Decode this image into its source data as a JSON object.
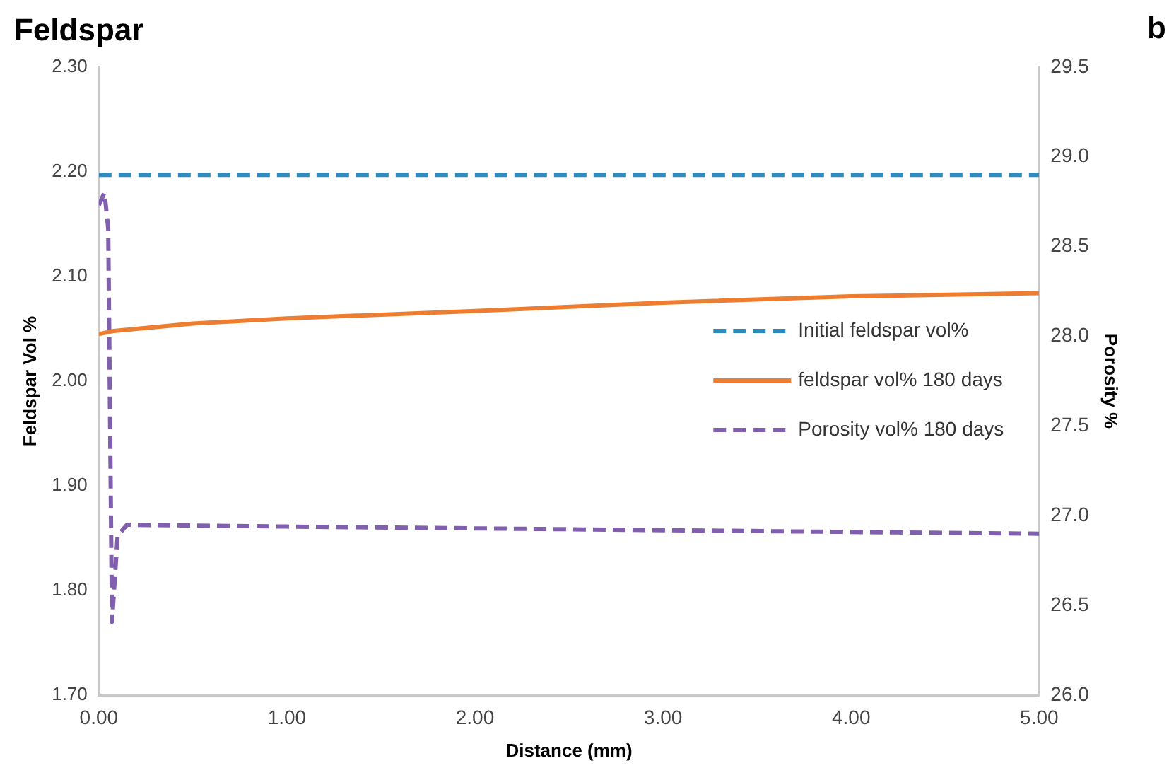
{
  "chart_data": {
    "type": "line",
    "title": "Feldspar",
    "xlabel": "Distance (mm)",
    "ylabel": "Feldspar Vol %",
    "y2label": "Porosity %",
    "annotations": [
      "b"
    ],
    "series": [
      {
        "name": "Initial feldspar vol%",
        "color": "#2e8bc0",
        "line_style": "dashed",
        "x": [
          0,
          5
        ],
        "values": [
          2.197,
          2.197
        ]
      },
      {
        "name": "feldspar vol% 180 days",
        "color": "#ed7d31",
        "line_style": "solid",
        "x": [
          0,
          0.08,
          0.5,
          1,
          2,
          3,
          4,
          5
        ],
        "values": [
          2.045,
          2.048,
          2.055,
          2.06,
          2.067,
          2.075,
          2.081,
          2.084
        ]
      },
      {
        "name": "Porosity vol% 180 days",
        "color": "#7f5fae",
        "line_style": "dashed",
        "axis": "y2",
        "x": [
          0,
          0.03,
          0.05,
          0.07,
          0.1,
          0.15,
          1,
          2,
          3,
          4,
          5
        ],
        "values": [
          28.73,
          28.8,
          28.6,
          26.41,
          26.89,
          26.95,
          26.94,
          26.93,
          26.92,
          26.91,
          26.9
        ]
      }
    ],
    "xlim": [
      0,
      5
    ],
    "xticks": [
      {
        "value": 0,
        "label": "0.00"
      },
      {
        "value": 1,
        "label": "1.00"
      },
      {
        "value": 2,
        "label": "2.00"
      },
      {
        "value": 3,
        "label": "3.00"
      },
      {
        "value": 4,
        "label": "4.00"
      },
      {
        "value": 5,
        "label": "5.00"
      }
    ],
    "ylim": [
      1.7,
      2.3
    ],
    "yticks": [
      {
        "value": 1.7,
        "label": "1.70"
      },
      {
        "value": 1.8,
        "label": "1.80"
      },
      {
        "value": 1.9,
        "label": "1.90"
      },
      {
        "value": 2.0,
        "label": "2.00"
      },
      {
        "value": 2.1,
        "label": "2.10"
      },
      {
        "value": 2.2,
        "label": "2.20"
      },
      {
        "value": 2.3,
        "label": "2.30"
      }
    ],
    "y2lim": [
      26,
      29.5
    ],
    "y2ticks": [
      {
        "value": 26,
        "label": "26.0"
      },
      26.5,
      {
        "value": 27,
        "label": "27.0"
      },
      27.5,
      {
        "value": 28,
        "label": "28.0"
      },
      28.5,
      {
        "value": 29,
        "label": "29.0"
      },
      29.5
    ],
    "grid": false,
    "legend": "right",
    "marker": "none"
  }
}
